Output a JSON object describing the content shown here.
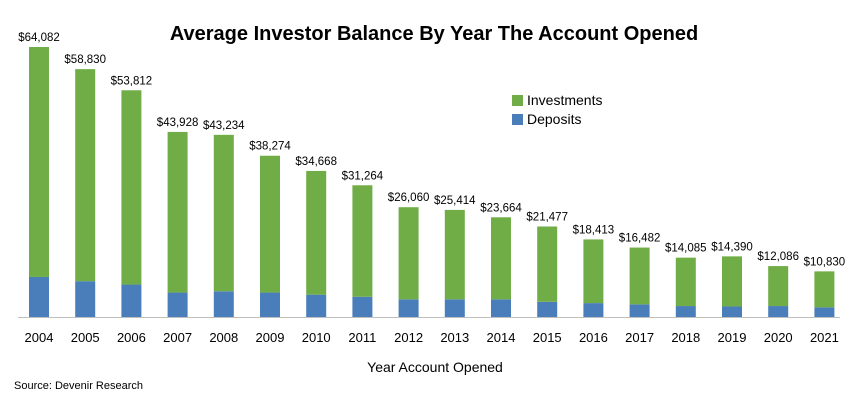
{
  "chart_data": {
    "type": "bar",
    "stacked": true,
    "title": "Average Investor Balance By Year The Account Opened",
    "xlabel": "Year Account Opened",
    "ylabel": "",
    "ylim": [
      0,
      64082
    ],
    "grid": false,
    "legend_position": "top-right",
    "categories": [
      "2004",
      "2005",
      "2006",
      "2007",
      "2008",
      "2009",
      "2010",
      "2011",
      "2012",
      "2013",
      "2014",
      "2015",
      "2016",
      "2017",
      "2018",
      "2019",
      "2020",
      "2021"
    ],
    "totals": [
      64082,
      58830,
      53812,
      43928,
      43234,
      38274,
      34668,
      31264,
      26060,
      25414,
      23664,
      21477,
      18413,
      16482,
      14085,
      14390,
      12086,
      10830
    ],
    "total_labels": [
      "$64,082",
      "$58,830",
      "$53,812",
      "$43,928",
      "$43,234",
      "$38,274",
      "$34,668",
      "$31,264",
      "$26,060",
      "$25,414",
      "$23,664",
      "$21,477",
      "$18,413",
      "$16,482",
      "$14,085",
      "$14,390",
      "$12,086",
      "$10,830"
    ],
    "series": [
      {
        "name": "Deposits",
        "color": "#4a7ebb",
        "values": [
          9500,
          8500,
          7700,
          5800,
          6100,
          5800,
          5300,
          4800,
          4200,
          4200,
          4200,
          3600,
          3300,
          3000,
          2600,
          2500,
          2600,
          2300
        ]
      },
      {
        "name": "Investments",
        "color": "#70ad47",
        "values": [
          54582,
          50330,
          46112,
          38128,
          37134,
          32474,
          29368,
          26464,
          21860,
          21214,
          19464,
          17877,
          15113,
          13482,
          11485,
          11890,
          9486,
          8530
        ]
      }
    ]
  },
  "source": "Source: Devenir Research"
}
